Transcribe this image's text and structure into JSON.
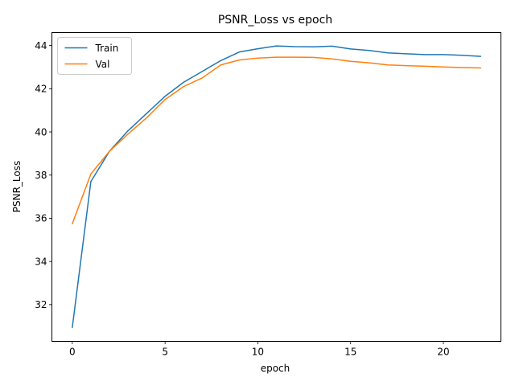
{
  "chart_data": {
    "type": "line",
    "title": "PSNR_Loss vs epoch",
    "xlabel": "epoch",
    "ylabel": "PSNR_Loss",
    "xlim": [
      -1.1,
      23.1
    ],
    "ylim": [
      30.3,
      44.6
    ],
    "xticks": [
      0,
      5,
      10,
      15,
      20
    ],
    "yticks": [
      32,
      34,
      36,
      38,
      40,
      42,
      44
    ],
    "grid": false,
    "legend_position": "top-left",
    "x": [
      0,
      1,
      2,
      3,
      4,
      5,
      6,
      7,
      8,
      9,
      10,
      11,
      12,
      13,
      14,
      15,
      16,
      17,
      18,
      19,
      20,
      21,
      22
    ],
    "series": [
      {
        "name": "Train",
        "color": "#1f77b4",
        "values": [
          30.95,
          37.7,
          39.1,
          40.05,
          40.85,
          41.65,
          42.3,
          42.8,
          43.3,
          43.7,
          43.85,
          43.98,
          43.95,
          43.94,
          43.97,
          43.84,
          43.77,
          43.66,
          43.62,
          43.58,
          43.58,
          43.55,
          43.5
        ]
      },
      {
        "name": "Val",
        "color": "#ff7f0e",
        "values": [
          35.75,
          38.05,
          39.1,
          39.9,
          40.65,
          41.5,
          42.1,
          42.5,
          43.1,
          43.33,
          43.42,
          43.46,
          43.46,
          43.45,
          43.38,
          43.27,
          43.2,
          43.1,
          43.07,
          43.04,
          43.01,
          42.98,
          42.96
        ]
      }
    ]
  }
}
